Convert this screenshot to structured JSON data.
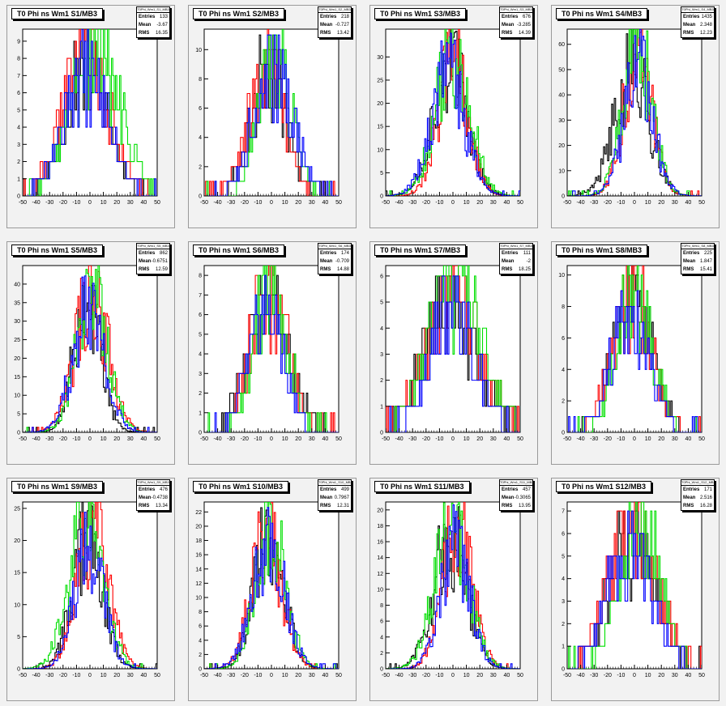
{
  "chart_data": [
    {
      "type": "histogram",
      "title": "T0 Phi ns Wm1 S1/MB3",
      "stats_title": "T0Phi_Wm1_S1_MB3",
      "entries": "133",
      "mean": "-3.67",
      "rms": "16.35",
      "xlim": [
        -50,
        50
      ],
      "ylim": [
        0,
        9.7
      ],
      "xticks": [
        -50,
        -40,
        -30,
        -20,
        -10,
        0,
        10,
        20,
        30,
        40,
        50
      ],
      "yticks": [
        0,
        1,
        2,
        3,
        4,
        5,
        6,
        7,
        8,
        9
      ],
      "sigma": 16,
      "seed": 11
    },
    {
      "type": "histogram",
      "title": "T0 Phi ns Wm1 S2/MB3",
      "stats_title": "T0Phi_Wm1_S2_MB3",
      "entries": "218",
      "mean": "-0.727",
      "rms": "13.42",
      "xlim": [
        -50,
        50
      ],
      "ylim": [
        0,
        11.4
      ],
      "xticks": [
        -50,
        -40,
        -30,
        -20,
        -10,
        0,
        10,
        20,
        30,
        40,
        50
      ],
      "yticks": [
        0,
        2,
        4,
        6,
        8,
        10
      ],
      "sigma": 13,
      "seed": 23
    },
    {
      "type": "histogram",
      "title": "T0 Phi ns Wm1 S3/MB3",
      "stats_title": "T0Phi_Wm1_S3_MB3",
      "entries": "676",
      "mean": "-3.285",
      "rms": "14.39",
      "xlim": [
        -50,
        50
      ],
      "ylim": [
        0,
        36
      ],
      "xticks": [
        -50,
        -40,
        -30,
        -20,
        -10,
        0,
        10,
        20,
        30,
        40,
        50
      ],
      "yticks": [
        0,
        5,
        10,
        15,
        20,
        25,
        30
      ],
      "sigma": 12,
      "seed": 37
    },
    {
      "type": "histogram",
      "title": "T0 Phi ns Wm1 S4/MB3",
      "stats_title": "T0Phi_Wm1_S4_MB3",
      "entries": "1435",
      "mean": "2.348",
      "rms": "12.23",
      "xlim": [
        -50,
        50
      ],
      "ylim": [
        0,
        66
      ],
      "xticks": [
        -50,
        -40,
        -30,
        -20,
        -10,
        0,
        10,
        20,
        30,
        40,
        50
      ],
      "yticks": [
        0,
        10,
        20,
        30,
        40,
        50,
        60
      ],
      "sigma": 11,
      "seed": 41
    },
    {
      "type": "histogram",
      "title": "T0 Phi ns Wm1 S5/MB3",
      "stats_title": "T0Phi_Wm1_S5_MB3",
      "entries": "862",
      "mean": "-0.6751",
      "rms": "12.59",
      "xlim": [
        -50,
        50
      ],
      "ylim": [
        0,
        45
      ],
      "xticks": [
        -50,
        -40,
        -30,
        -20,
        -10,
        0,
        10,
        20,
        30,
        40,
        50
      ],
      "yticks": [
        0,
        5,
        10,
        15,
        20,
        25,
        30,
        35,
        40
      ],
      "sigma": 11,
      "seed": 53
    },
    {
      "type": "histogram",
      "title": "T0 Phi ns Wm1 S6/MB3",
      "stats_title": "T0Phi_Wm1_S6_MB3",
      "entries": "174",
      "mean": "-0.709",
      "rms": "14.88",
      "xlim": [
        -50,
        50
      ],
      "ylim": [
        0,
        8.5
      ],
      "xticks": [
        -50,
        -40,
        -30,
        -20,
        -10,
        0,
        10,
        20,
        30,
        40,
        50
      ],
      "yticks": [
        0,
        1,
        2,
        3,
        4,
        5,
        6,
        7,
        8
      ],
      "sigma": 14,
      "seed": 61
    },
    {
      "type": "histogram",
      "title": "T0 Phi ns Wm1 S7/MB3",
      "stats_title": "T0Phi_Wm1_S7_MB3",
      "entries": "111",
      "mean": "-2",
      "rms": "18.25",
      "xlim": [
        -50,
        50
      ],
      "ylim": [
        0,
        6.4
      ],
      "xticks": [
        -50,
        -40,
        -30,
        -20,
        -10,
        0,
        10,
        20,
        30,
        40,
        50
      ],
      "yticks": [
        0,
        1,
        2,
        3,
        4,
        5,
        6
      ],
      "sigma": 18,
      "seed": 71
    },
    {
      "type": "histogram",
      "title": "T0 Phi ns Wm1 S8/MB3",
      "stats_title": "T0Phi_Wm1_S8_MB3",
      "entries": "225",
      "mean": "1.847",
      "rms": "15.41",
      "xlim": [
        -50,
        50
      ],
      "ylim": [
        0,
        10.6
      ],
      "xticks": [
        -50,
        -40,
        -30,
        -20,
        -10,
        0,
        10,
        20,
        30,
        40,
        50
      ],
      "yticks": [
        0,
        2,
        4,
        6,
        8,
        10
      ],
      "sigma": 14,
      "seed": 83
    },
    {
      "type": "histogram",
      "title": "T0 Phi ns Wm1 S9/MB3",
      "stats_title": "T0Phi_Wm1_S9_MB3",
      "entries": "476",
      "mean": "-0.4738",
      "rms": "13.34",
      "xlim": [
        -50,
        50
      ],
      "ylim": [
        0,
        26
      ],
      "xticks": [
        -50,
        -40,
        -30,
        -20,
        -10,
        0,
        10,
        20,
        30,
        40,
        50
      ],
      "yticks": [
        0,
        5,
        10,
        15,
        20,
        25
      ],
      "sigma": 12,
      "seed": 97
    },
    {
      "type": "histogram",
      "title": "T0 Phi ns Wm1 S10/MB3",
      "stats_title": "T0Phi_Wm1_S10_MB3",
      "entries": "499",
      "mean": "0.7967",
      "rms": "12.31",
      "xlim": [
        -50,
        50
      ],
      "ylim": [
        0,
        23.4
      ],
      "xticks": [
        -50,
        -40,
        -30,
        -20,
        -10,
        0,
        10,
        20,
        30,
        40,
        50
      ],
      "yticks": [
        0,
        2,
        4,
        6,
        8,
        10,
        12,
        14,
        16,
        18,
        20,
        22
      ],
      "sigma": 11,
      "seed": 101
    },
    {
      "type": "histogram",
      "title": "T0 Phi ns Wm1 S11/MB3",
      "stats_title": "T0Phi_Wm1_S11_MB3",
      "entries": "457",
      "mean": "-0.3065",
      "rms": "13.95",
      "xlim": [
        -50,
        50
      ],
      "ylim": [
        0,
        21
      ],
      "xticks": [
        -50,
        -40,
        -30,
        -20,
        -10,
        0,
        10,
        20,
        30,
        40,
        50
      ],
      "yticks": [
        0,
        2,
        4,
        6,
        8,
        10,
        12,
        14,
        16,
        18,
        20
      ],
      "sigma": 12,
      "seed": 113
    },
    {
      "type": "histogram",
      "title": "T0 Phi ns Wm1 S12/MB3",
      "stats_title": "T0Phi_Wm1_S12_MB3",
      "entries": "171",
      "mean": "2.516",
      "rms": "16.28",
      "xlim": [
        -50,
        50
      ],
      "ylim": [
        0,
        7.4
      ],
      "xticks": [
        -50,
        -40,
        -30,
        -20,
        -10,
        0,
        10,
        20,
        30,
        40,
        50
      ],
      "yticks": [
        0,
        1,
        2,
        3,
        4,
        5,
        6,
        7
      ],
      "sigma": 16,
      "seed": 127
    }
  ],
  "labels": {
    "entries": "Entries",
    "mean": "Mean",
    "rms": "RMS"
  },
  "series_colors": [
    "#000000",
    "#ff0000",
    "#00e000",
    "#0000ff"
  ]
}
